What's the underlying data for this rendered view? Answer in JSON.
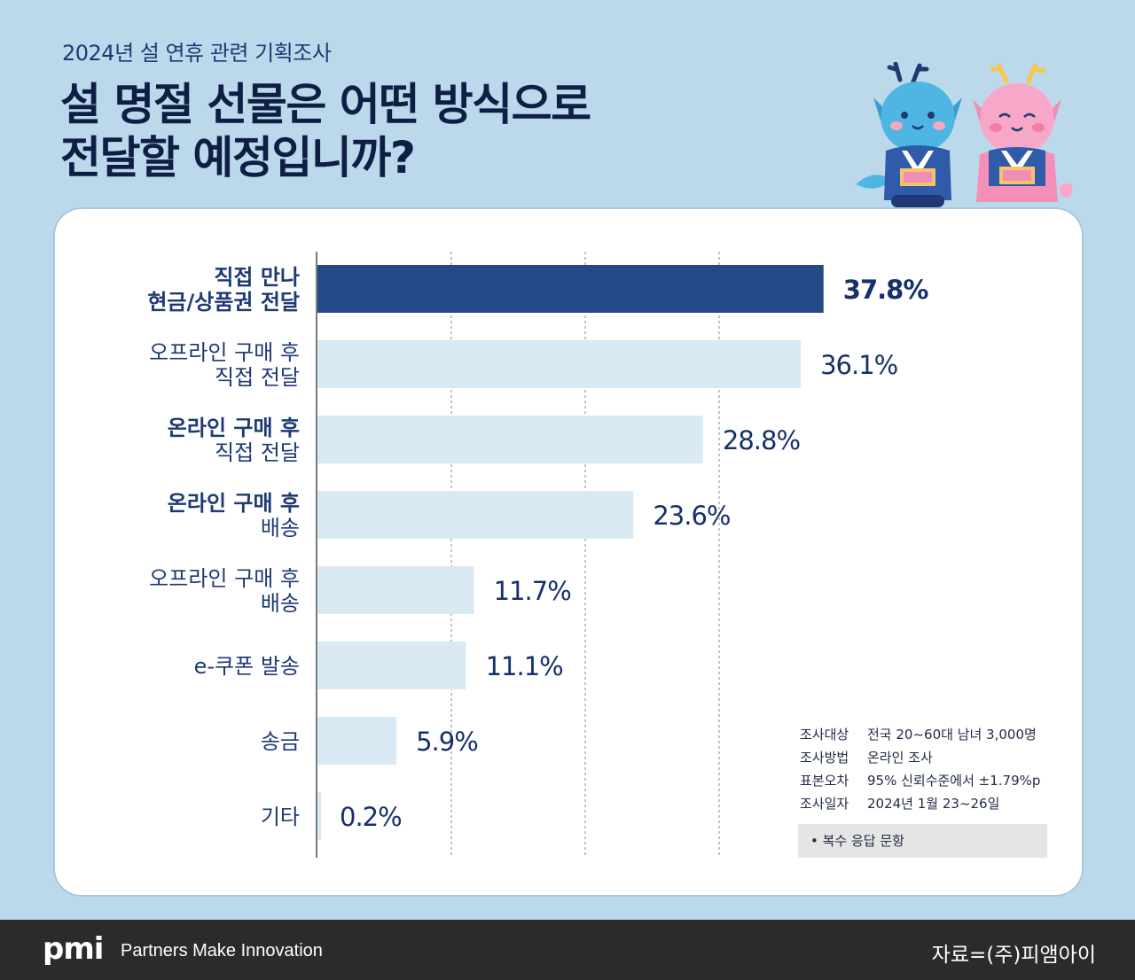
{
  "header": {
    "subtitle": "2024년 설 연휴 관련 기획조사",
    "title_line1": "설 명절 선물은 어떤 방식으로",
    "title_line2": "전달할 예정입니까?"
  },
  "chart_data": {
    "type": "bar",
    "orientation": "horizontal",
    "categories": [
      [
        "직접 만나",
        "현금/상품권 전달"
      ],
      [
        "오프라인 구매 후",
        "직접 전달"
      ],
      [
        "온라인 구매 후",
        "직접 전달"
      ],
      [
        "온라인 구매 후",
        "배송"
      ],
      [
        "오프라인 구매 후",
        "배송"
      ],
      [
        "e-쿠폰 발송"
      ],
      [
        "송금"
      ],
      [
        "기타"
      ]
    ],
    "values": [
      37.8,
      36.1,
      28.8,
      23.6,
      11.7,
      11.1,
      5.9,
      0.2
    ],
    "value_labels": [
      "37.8%",
      "36.1%",
      "28.8%",
      "23.6%",
      "11.7%",
      "11.1%",
      "5.9%",
      "0.2%"
    ],
    "highlight_index": 0,
    "green_first_line_indices": [
      2,
      3
    ],
    "xlim": [
      0,
      40
    ],
    "grid": "vertical dashed",
    "colors": {
      "highlight_bar": "#234a86",
      "bar": "#d9eaf4",
      "label": "#1f3a73",
      "green_label": "#3aa05a",
      "value": "#16306b"
    }
  },
  "info": {
    "rows": [
      {
        "key": "조사대상",
        "value": "전국 20~60대 남녀 3,000명"
      },
      {
        "key": "조사방법",
        "value": "온라인 조사"
      },
      {
        "key": "표본오차",
        "value": "95% 신뢰수준에서 ±1.79%p"
      },
      {
        "key": "조사일자",
        "value": "2024년 1월 23~26일"
      }
    ],
    "note": "• 복수 응답 문항"
  },
  "footer": {
    "logo": "pmi",
    "tagline": "Partners Make Innovation",
    "source": "자료=(주)피앰아이"
  },
  "colors": {
    "background": "#bcd9ec",
    "card": "#ffffff",
    "footer": "#2b2b2b"
  }
}
